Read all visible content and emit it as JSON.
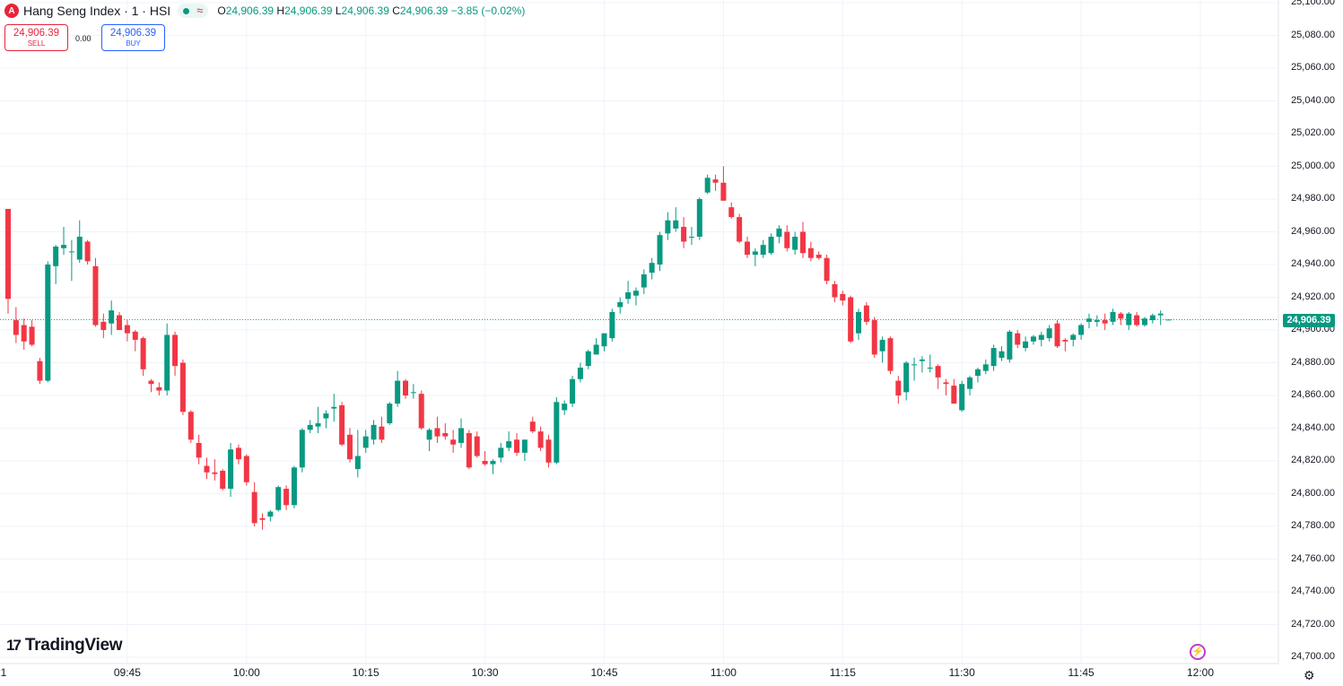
{
  "header": {
    "symbol_logo": "A",
    "title": "Hang Seng Index · 1 · HSI",
    "status_icon": "approx-icon",
    "approx": "≈",
    "ohlc": {
      "o_label": "O",
      "o": "24,906.39",
      "h_label": "H",
      "h": "24,906.39",
      "l_label": "L",
      "l": "24,906.39",
      "c_label": "C",
      "c": "24,906.39",
      "change": "−3.85 (−0.02%)"
    }
  },
  "trade": {
    "sell_price": "24,906.39",
    "sell_label": "SELL",
    "spread": "0.00",
    "buy_price": "24,906.39",
    "buy_label": "BUY"
  },
  "colors": {
    "up": "#089981",
    "down": "#f23645",
    "grid": "#f0f3fa",
    "last_line": "#089981"
  },
  "last_price_label": "24,906.39",
  "brand": "TradingView",
  "edge_label": "1",
  "chart_data": {
    "type": "candlestick",
    "symbol": "HSI",
    "interval": "1",
    "ylim": [
      24700,
      25100
    ],
    "y_ticks": [
      "25,100.00",
      "25,080.00",
      "25,060.00",
      "25,040.00",
      "25,020.00",
      "25,000.00",
      "24,980.00",
      "24,960.00",
      "24,940.00",
      "24,920.00",
      "24,900.00",
      "24,880.00",
      "24,860.00",
      "24,840.00",
      "24,820.00",
      "24,800.00",
      "24,780.00",
      "24,760.00",
      "24,740.00",
      "24,720.00",
      "24,700.00"
    ],
    "y_tick_values": [
      25100,
      25080,
      25060,
      25040,
      25020,
      25000,
      24980,
      24960,
      24940,
      24920,
      24900,
      24880,
      24860,
      24840,
      24820,
      24800,
      24780,
      24760,
      24740,
      24720,
      24700
    ],
    "x_ticks": [
      "09:45",
      "10:00",
      "10:15",
      "10:30",
      "10:45",
      "11:00",
      "11:15",
      "11:30",
      "11:45",
      "12:00"
    ],
    "last_price": 24906.39,
    "bar_times": [
      "09:30",
      "09:31",
      "09:32",
      "09:33",
      "09:34",
      "09:35",
      "09:36",
      "09:37",
      "09:38",
      "09:39",
      "09:40",
      "09:41",
      "09:42",
      "09:43",
      "09:44",
      "09:45",
      "09:46",
      "09:47",
      "09:48",
      "09:49",
      "09:50",
      "09:51",
      "09:52",
      "09:53",
      "09:54",
      "09:55",
      "09:56",
      "09:57",
      "09:58",
      "09:59",
      "10:00",
      "10:01",
      "10:02",
      "10:03",
      "10:04",
      "10:05",
      "10:06",
      "10:07",
      "10:08",
      "10:09",
      "10:10",
      "10:11",
      "10:12",
      "10:13",
      "10:14",
      "10:15",
      "10:16",
      "10:17",
      "10:18",
      "10:19",
      "10:20",
      "10:21",
      "10:22",
      "10:23",
      "10:24",
      "10:25",
      "10:26",
      "10:27",
      "10:28",
      "10:29",
      "10:30",
      "10:31",
      "10:32",
      "10:33",
      "10:34",
      "10:35",
      "10:36",
      "10:37",
      "10:38",
      "10:39",
      "10:40",
      "10:41",
      "10:42",
      "10:43",
      "10:44",
      "10:45",
      "10:46",
      "10:47",
      "10:48",
      "10:49",
      "10:50",
      "10:51",
      "10:52",
      "10:53",
      "10:54",
      "10:55",
      "10:56",
      "10:57",
      "10:58",
      "10:59",
      "11:00",
      "11:01",
      "11:02",
      "11:03",
      "11:04",
      "11:05",
      "11:06",
      "11:07",
      "11:08",
      "11:09",
      "11:10",
      "11:11",
      "11:12",
      "11:13",
      "11:14",
      "11:15",
      "11:16",
      "11:17",
      "11:18",
      "11:19",
      "11:20",
      "11:21",
      "11:22",
      "11:23",
      "11:24",
      "11:25",
      "11:26",
      "11:27",
      "11:28",
      "11:29",
      "11:30",
      "11:31",
      "11:32",
      "11:33",
      "11:34",
      "11:35",
      "11:36",
      "11:37",
      "11:38",
      "11:39",
      "11:40",
      "11:41",
      "11:42",
      "11:43",
      "11:44",
      "11:45",
      "11:46",
      "11:47",
      "11:48",
      "11:49",
      "11:50",
      "11:51",
      "11:52",
      "11:53",
      "11:54",
      "11:55",
      "11:56",
      "11:57",
      "11:58",
      "11:59",
      "12:00"
    ],
    "candles": [
      {
        "o": 24974,
        "h": 24974,
        "l": 24910,
        "c": 24919
      },
      {
        "o": 24906,
        "h": 24914,
        "l": 24892,
        "c": 24897
      },
      {
        "o": 24903,
        "h": 24907,
        "l": 24888,
        "c": 24893
      },
      {
        "o": 24902,
        "h": 24906,
        "l": 24890,
        "c": 24891
      },
      {
        "o": 24881,
        "h": 24883,
        "l": 24867,
        "c": 24869
      },
      {
        "o": 24869,
        "h": 24942,
        "l": 24868,
        "c": 24940
      },
      {
        "o": 24939,
        "h": 24952,
        "l": 24928,
        "c": 24951
      },
      {
        "o": 24950,
        "h": 24963,
        "l": 24946,
        "c": 24952
      },
      {
        "o": 24948,
        "h": 24955,
        "l": 24930,
        "c": 24948
      },
      {
        "o": 24943,
        "h": 24967,
        "l": 24941,
        "c": 24957
      },
      {
        "o": 24954,
        "h": 24955,
        "l": 24940,
        "c": 24942
      },
      {
        "o": 24939,
        "h": 24944,
        "l": 24902,
        "c": 24903
      },
      {
        "o": 24905,
        "h": 24910,
        "l": 24895,
        "c": 24900
      },
      {
        "o": 24904,
        "h": 24918,
        "l": 24897,
        "c": 24912
      },
      {
        "o": 24909,
        "h": 24911,
        "l": 24900,
        "c": 24900
      },
      {
        "o": 24903,
        "h": 24906,
        "l": 24893,
        "c": 24898
      },
      {
        "o": 24899,
        "h": 24900,
        "l": 24887,
        "c": 24894
      },
      {
        "o": 24895,
        "h": 24896,
        "l": 24872,
        "c": 24876
      },
      {
        "o": 24869,
        "h": 24870,
        "l": 24862,
        "c": 24867
      },
      {
        "o": 24865,
        "h": 24868,
        "l": 24860,
        "c": 24863
      },
      {
        "o": 24863,
        "h": 24904,
        "l": 24860,
        "c": 24897
      },
      {
        "o": 24897,
        "h": 24899,
        "l": 24872,
        "c": 24878
      },
      {
        "o": 24880,
        "h": 24882,
        "l": 24848,
        "c": 24850
      },
      {
        "o": 24850,
        "h": 24851,
        "l": 24831,
        "c": 24833
      },
      {
        "o": 24831,
        "h": 24836,
        "l": 24818,
        "c": 24822
      },
      {
        "o": 24817,
        "h": 24822,
        "l": 24809,
        "c": 24813
      },
      {
        "o": 24813,
        "h": 24821,
        "l": 24808,
        "c": 24812
      },
      {
        "o": 24814,
        "h": 24815,
        "l": 24802,
        "c": 24803
      },
      {
        "o": 24803,
        "h": 24831,
        "l": 24798,
        "c": 24827
      },
      {
        "o": 24828,
        "h": 24830,
        "l": 24818,
        "c": 24821
      },
      {
        "o": 24823,
        "h": 24824,
        "l": 24805,
        "c": 24807
      },
      {
        "o": 24801,
        "h": 24807,
        "l": 24780,
        "c": 24782
      },
      {
        "o": 24785,
        "h": 24788,
        "l": 24778,
        "c": 24784
      },
      {
        "o": 24786,
        "h": 24790,
        "l": 24783,
        "c": 24789
      },
      {
        "o": 24790,
        "h": 24805,
        "l": 24789,
        "c": 24804
      },
      {
        "o": 24803,
        "h": 24805,
        "l": 24790,
        "c": 24793
      },
      {
        "o": 24793,
        "h": 24817,
        "l": 24791,
        "c": 24816
      },
      {
        "o": 24816,
        "h": 24840,
        "l": 24813,
        "c": 24839
      },
      {
        "o": 24839,
        "h": 24845,
        "l": 24837,
        "c": 24842
      },
      {
        "o": 24841,
        "h": 24853,
        "l": 24837,
        "c": 24843
      },
      {
        "o": 24846,
        "h": 24851,
        "l": 24840,
        "c": 24849
      },
      {
        "o": 24852,
        "h": 24861,
        "l": 24844,
        "c": 24853
      },
      {
        "o": 24854,
        "h": 24856,
        "l": 24829,
        "c": 24830
      },
      {
        "o": 24836,
        "h": 24840,
        "l": 24819,
        "c": 24821
      },
      {
        "o": 24815,
        "h": 24839,
        "l": 24810,
        "c": 24823
      },
      {
        "o": 24828,
        "h": 24839,
        "l": 24825,
        "c": 24835
      },
      {
        "o": 24833,
        "h": 24845,
        "l": 24830,
        "c": 24842
      },
      {
        "o": 24841,
        "h": 24847,
        "l": 24831,
        "c": 24833
      },
      {
        "o": 24843,
        "h": 24856,
        "l": 24842,
        "c": 24855
      },
      {
        "o": 24855,
        "h": 24875,
        "l": 24853,
        "c": 24869
      },
      {
        "o": 24869,
        "h": 24870,
        "l": 24858,
        "c": 24860
      },
      {
        "o": 24862,
        "h": 24867,
        "l": 24858,
        "c": 24862
      },
      {
        "o": 24861,
        "h": 24863,
        "l": 24839,
        "c": 24840
      },
      {
        "o": 24833,
        "h": 24840,
        "l": 24826,
        "c": 24839
      },
      {
        "o": 24840,
        "h": 24847,
        "l": 24831,
        "c": 24835
      },
      {
        "o": 24837,
        "h": 24843,
        "l": 24833,
        "c": 24835
      },
      {
        "o": 24833,
        "h": 24839,
        "l": 24825,
        "c": 24830
      },
      {
        "o": 24831,
        "h": 24846,
        "l": 24828,
        "c": 24840
      },
      {
        "o": 24837,
        "h": 24839,
        "l": 24815,
        "c": 24816
      },
      {
        "o": 24835,
        "h": 24838,
        "l": 24822,
        "c": 24823
      },
      {
        "o": 24820,
        "h": 24826,
        "l": 24817,
        "c": 24818
      },
      {
        "o": 24818,
        "h": 24821,
        "l": 24812,
        "c": 24820
      },
      {
        "o": 24822,
        "h": 24831,
        "l": 24819,
        "c": 24828
      },
      {
        "o": 24828,
        "h": 24838,
        "l": 24826,
        "c": 24832
      },
      {
        "o": 24833,
        "h": 24837,
        "l": 24823,
        "c": 24825
      },
      {
        "o": 24825,
        "h": 24833,
        "l": 24820,
        "c": 24833
      },
      {
        "o": 24844,
        "h": 24847,
        "l": 24837,
        "c": 24838
      },
      {
        "o": 24838,
        "h": 24841,
        "l": 24826,
        "c": 24828
      },
      {
        "o": 24833,
        "h": 24836,
        "l": 24816,
        "c": 24819
      },
      {
        "o": 24819,
        "h": 24859,
        "l": 24818,
        "c": 24856
      },
      {
        "o": 24851,
        "h": 24857,
        "l": 24848,
        "c": 24855
      },
      {
        "o": 24855,
        "h": 24872,
        "l": 24853,
        "c": 24870
      },
      {
        "o": 24870,
        "h": 24880,
        "l": 24868,
        "c": 24877
      },
      {
        "o": 24878,
        "h": 24888,
        "l": 24876,
        "c": 24887
      },
      {
        "o": 24885,
        "h": 24895,
        "l": 24885,
        "c": 24891
      },
      {
        "o": 24890,
        "h": 24896,
        "l": 24887,
        "c": 24898
      },
      {
        "o": 24895,
        "h": 24913,
        "l": 24893,
        "c": 24911
      },
      {
        "o": 24914,
        "h": 24920,
        "l": 24910,
        "c": 24917
      },
      {
        "o": 24919,
        "h": 24930,
        "l": 24916,
        "c": 24923
      },
      {
        "o": 24921,
        "h": 24926,
        "l": 24915,
        "c": 24924
      },
      {
        "o": 24926,
        "h": 24937,
        "l": 24922,
        "c": 24934
      },
      {
        "o": 24935,
        "h": 24944,
        "l": 24931,
        "c": 24941
      },
      {
        "o": 24940,
        "h": 24960,
        "l": 24936,
        "c": 24958
      },
      {
        "o": 24959,
        "h": 24972,
        "l": 24955,
        "c": 24967
      },
      {
        "o": 24962,
        "h": 24975,
        "l": 24960,
        "c": 24967
      },
      {
        "o": 24963,
        "h": 24969,
        "l": 24950,
        "c": 24954
      },
      {
        "o": 24957,
        "h": 24963,
        "l": 24952,
        "c": 24957
      },
      {
        "o": 24957,
        "h": 24981,
        "l": 24955,
        "c": 24980
      },
      {
        "o": 24984,
        "h": 24995,
        "l": 24983,
        "c": 24993
      },
      {
        "o": 24992,
        "h": 24995,
        "l": 24985,
        "c": 24990
      },
      {
        "o": 24990,
        "h": 25000,
        "l": 24980,
        "c": 24979
      },
      {
        "o": 24975,
        "h": 24978,
        "l": 24968,
        "c": 24969
      },
      {
        "o": 24969,
        "h": 24971,
        "l": 24953,
        "c": 24954
      },
      {
        "o": 24954,
        "h": 24957,
        "l": 24944,
        "c": 24946
      },
      {
        "o": 24946,
        "h": 24950,
        "l": 24939,
        "c": 24948
      },
      {
        "o": 24946,
        "h": 24955,
        "l": 24944,
        "c": 24952
      },
      {
        "o": 24947,
        "h": 24959,
        "l": 24946,
        "c": 24957
      },
      {
        "o": 24957,
        "h": 24964,
        "l": 24953,
        "c": 24962
      },
      {
        "o": 24960,
        "h": 24964,
        "l": 24948,
        "c": 24950
      },
      {
        "o": 24949,
        "h": 24960,
        "l": 24946,
        "c": 24957
      },
      {
        "o": 24960,
        "h": 24966,
        "l": 24944,
        "c": 24947
      },
      {
        "o": 24950,
        "h": 24954,
        "l": 24942,
        "c": 24944
      },
      {
        "o": 24946,
        "h": 24948,
        "l": 24943,
        "c": 24944
      },
      {
        "o": 24944,
        "h": 24946,
        "l": 24928,
        "c": 24930
      },
      {
        "o": 24928,
        "h": 24930,
        "l": 24917,
        "c": 24920
      },
      {
        "o": 24922,
        "h": 24924,
        "l": 24915,
        "c": 24918
      },
      {
        "o": 24920,
        "h": 24921,
        "l": 24892,
        "c": 24893
      },
      {
        "o": 24898,
        "h": 24913,
        "l": 24894,
        "c": 24911
      },
      {
        "o": 24915,
        "h": 24917,
        "l": 24903,
        "c": 24905
      },
      {
        "o": 24906,
        "h": 24908,
        "l": 24883,
        "c": 24885
      },
      {
        "o": 24887,
        "h": 24896,
        "l": 24880,
        "c": 24894
      },
      {
        "o": 24895,
        "h": 24896,
        "l": 24873,
        "c": 24875
      },
      {
        "o": 24869,
        "h": 24872,
        "l": 24855,
        "c": 24860
      },
      {
        "o": 24862,
        "h": 24881,
        "l": 24857,
        "c": 24880
      },
      {
        "o": 24879,
        "h": 24883,
        "l": 24869,
        "c": 24879
      },
      {
        "o": 24881,
        "h": 24884,
        "l": 24874,
        "c": 24882
      },
      {
        "o": 24877,
        "h": 24885,
        "l": 24874,
        "c": 24877
      },
      {
        "o": 24878,
        "h": 24879,
        "l": 24864,
        "c": 24871
      },
      {
        "o": 24868,
        "h": 24870,
        "l": 24860,
        "c": 24867
      },
      {
        "o": 24866,
        "h": 24870,
        "l": 24857,
        "c": 24855
      },
      {
        "o": 24851,
        "h": 24869,
        "l": 24850,
        "c": 24867
      },
      {
        "o": 24864,
        "h": 24872,
        "l": 24860,
        "c": 24871
      },
      {
        "o": 24872,
        "h": 24877,
        "l": 24868,
        "c": 24876
      },
      {
        "o": 24875,
        "h": 24882,
        "l": 24873,
        "c": 24879
      },
      {
        "o": 24878,
        "h": 24891,
        "l": 24875,
        "c": 24889
      },
      {
        "o": 24883,
        "h": 24890,
        "l": 24881,
        "c": 24887
      },
      {
        "o": 24882,
        "h": 24900,
        "l": 24880,
        "c": 24899
      },
      {
        "o": 24898,
        "h": 24900,
        "l": 24889,
        "c": 24891
      },
      {
        "o": 24889,
        "h": 24896,
        "l": 24887,
        "c": 24893
      },
      {
        "o": 24893,
        "h": 24897,
        "l": 24891,
        "c": 24896
      },
      {
        "o": 24894,
        "h": 24899,
        "l": 24890,
        "c": 24897
      },
      {
        "o": 24895,
        "h": 24903,
        "l": 24893,
        "c": 24901
      },
      {
        "o": 24904,
        "h": 24906,
        "l": 24889,
        "c": 24890
      },
      {
        "o": 24894,
        "h": 24895,
        "l": 24887,
        "c": 24893
      },
      {
        "o": 24894,
        "h": 24898,
        "l": 24890,
        "c": 24897
      },
      {
        "o": 24897,
        "h": 24904,
        "l": 24894,
        "c": 24903
      },
      {
        "o": 24905,
        "h": 24910,
        "l": 24901,
        "c": 24907
      },
      {
        "o": 24905,
        "h": 24909,
        "l": 24902,
        "c": 24906
      },
      {
        "o": 24906,
        "h": 24910,
        "l": 24900,
        "c": 24904
      },
      {
        "o": 24905,
        "h": 24913,
        "l": 24903,
        "c": 24911
      },
      {
        "o": 24910,
        "h": 24911,
        "l": 24903,
        "c": 24907
      },
      {
        "o": 24903,
        "h": 24911,
        "l": 24900,
        "c": 24910
      },
      {
        "o": 24909,
        "h": 24911,
        "l": 24902,
        "c": 24903
      },
      {
        "o": 24903,
        "h": 24908,
        "l": 24902,
        "c": 24907
      },
      {
        "o": 24906,
        "h": 24910,
        "l": 24904,
        "c": 24909
      },
      {
        "o": 24909,
        "h": 24912,
        "l": 24903,
        "c": 24910
      },
      {
        "o": 24906.39,
        "h": 24906.39,
        "l": 24906.39,
        "c": 24906.39
      }
    ]
  }
}
